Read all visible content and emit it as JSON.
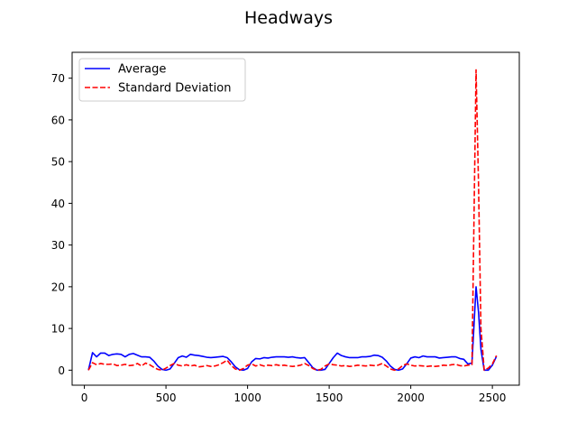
{
  "chart_data": {
    "type": "line",
    "title": "Headways",
    "xlabel": "",
    "ylabel": "",
    "xlim": [
      -75,
      2665
    ],
    "ylim": [
      -3.6,
      76.2
    ],
    "xticks": [
      0,
      500,
      1000,
      1500,
      2000,
      2500
    ],
    "yticks": [
      0,
      10,
      20,
      30,
      40,
      50,
      60,
      70
    ],
    "grid": false,
    "legend_position": "upper left",
    "series": [
      {
        "name": "Average",
        "color": "#0000ff",
        "style": "solid",
        "points": [
          [
            25,
            0
          ],
          [
            50,
            4.2
          ],
          [
            75,
            3.2
          ],
          [
            100,
            4.1
          ],
          [
            125,
            4.1
          ],
          [
            150,
            3.5
          ],
          [
            175,
            3.8
          ],
          [
            200,
            3.9
          ],
          [
            225,
            3.8
          ],
          [
            250,
            3.2
          ],
          [
            275,
            3.8
          ],
          [
            300,
            4
          ],
          [
            325,
            3.6
          ],
          [
            350,
            3.2
          ],
          [
            375,
            3.2
          ],
          [
            400,
            3.1
          ],
          [
            425,
            2.2
          ],
          [
            450,
            1
          ],
          [
            475,
            0.2
          ],
          [
            500,
            0
          ],
          [
            525,
            0.3
          ],
          [
            550,
            1.6
          ],
          [
            575,
            3
          ],
          [
            600,
            3.4
          ],
          [
            625,
            3.1
          ],
          [
            650,
            3.8
          ],
          [
            675,
            3.6
          ],
          [
            700,
            3.5
          ],
          [
            725,
            3.3
          ],
          [
            750,
            3.1
          ],
          [
            775,
            3
          ],
          [
            800,
            3.1
          ],
          [
            825,
            3.2
          ],
          [
            850,
            3.3
          ],
          [
            875,
            3
          ],
          [
            900,
            2
          ],
          [
            925,
            0.8
          ],
          [
            950,
            0.1
          ],
          [
            975,
            0
          ],
          [
            1000,
            0.4
          ],
          [
            1025,
            2
          ],
          [
            1050,
            2.8
          ],
          [
            1075,
            2.7
          ],
          [
            1100,
            3
          ],
          [
            1125,
            2.9
          ],
          [
            1150,
            3.1
          ],
          [
            1175,
            3.2
          ],
          [
            1200,
            3.2
          ],
          [
            1225,
            3.2
          ],
          [
            1250,
            3.1
          ],
          [
            1275,
            3.2
          ],
          [
            1300,
            3
          ],
          [
            1325,
            2.9
          ],
          [
            1350,
            3
          ],
          [
            1375,
            1.8
          ],
          [
            1400,
            0.6
          ],
          [
            1425,
            0
          ],
          [
            1450,
            0
          ],
          [
            1475,
            0.2
          ],
          [
            1500,
            1.6
          ],
          [
            1525,
            3
          ],
          [
            1550,
            4.1
          ],
          [
            1575,
            3.5
          ],
          [
            1600,
            3.2
          ],
          [
            1625,
            3
          ],
          [
            1650,
            3
          ],
          [
            1675,
            3
          ],
          [
            1700,
            3.2
          ],
          [
            1725,
            3.2
          ],
          [
            1750,
            3.3
          ],
          [
            1775,
            3.6
          ],
          [
            1800,
            3.5
          ],
          [
            1825,
            3.1
          ],
          [
            1850,
            2.2
          ],
          [
            1875,
            1
          ],
          [
            1900,
            0.2
          ],
          [
            1925,
            0
          ],
          [
            1950,
            0.3
          ],
          [
            1975,
            1.5
          ],
          [
            2000,
            2.9
          ],
          [
            2025,
            3.2
          ],
          [
            2050,
            3
          ],
          [
            2075,
            3.4
          ],
          [
            2100,
            3.2
          ],
          [
            2125,
            3.2
          ],
          [
            2150,
            3.2
          ],
          [
            2175,
            2.9
          ],
          [
            2200,
            3
          ],
          [
            2225,
            3.1
          ],
          [
            2250,
            3.2
          ],
          [
            2275,
            3.2
          ],
          [
            2300,
            2.8
          ],
          [
            2325,
            2.6
          ],
          [
            2350,
            1.5
          ],
          [
            2375,
            1.7
          ],
          [
            2400,
            20
          ],
          [
            2415,
            14
          ],
          [
            2430,
            5
          ],
          [
            2450,
            0
          ],
          [
            2475,
            0
          ],
          [
            2500,
            1.2
          ],
          [
            2525,
            3.3
          ]
        ]
      },
      {
        "name": "Standard Deviation",
        "color": "#ff0000",
        "style": "dashed",
        "points": [
          [
            25,
            0
          ],
          [
            50,
            1.8
          ],
          [
            75,
            1.3
          ],
          [
            100,
            1.6
          ],
          [
            125,
            1.4
          ],
          [
            150,
            1.4
          ],
          [
            175,
            1.5
          ],
          [
            200,
            1.1
          ],
          [
            225,
            1.2
          ],
          [
            250,
            1.4
          ],
          [
            275,
            1.1
          ],
          [
            300,
            1.2
          ],
          [
            325,
            1.6
          ],
          [
            350,
            1
          ],
          [
            375,
            1.7
          ],
          [
            400,
            1.3
          ],
          [
            425,
            0.7
          ],
          [
            450,
            0.2
          ],
          [
            475,
            0
          ],
          [
            500,
            0.5
          ],
          [
            525,
            1.1
          ],
          [
            550,
            1.6
          ],
          [
            575,
            1.2
          ],
          [
            600,
            1
          ],
          [
            625,
            1.3
          ],
          [
            650,
            1
          ],
          [
            675,
            1.2
          ],
          [
            700,
            0.8
          ],
          [
            725,
            0.9
          ],
          [
            750,
            1.1
          ],
          [
            775,
            0.9
          ],
          [
            800,
            1
          ],
          [
            825,
            1.3
          ],
          [
            850,
            1.8
          ],
          [
            875,
            2.4
          ],
          [
            900,
            1.1
          ],
          [
            925,
            0.3
          ],
          [
            950,
            0
          ],
          [
            975,
            0.4
          ],
          [
            1000,
            1.2
          ],
          [
            1025,
            1.5
          ],
          [
            1050,
            1
          ],
          [
            1075,
            1.3
          ],
          [
            1100,
            1
          ],
          [
            1125,
            1.2
          ],
          [
            1150,
            1.1
          ],
          [
            1175,
            1.3
          ],
          [
            1200,
            1.1
          ],
          [
            1225,
            1.2
          ],
          [
            1250,
            1
          ],
          [
            1275,
            0.9
          ],
          [
            1300,
            1
          ],
          [
            1325,
            1.2
          ],
          [
            1350,
            1.6
          ],
          [
            1375,
            1.1
          ],
          [
            1400,
            0.4
          ],
          [
            1425,
            0
          ],
          [
            1450,
            0.2
          ],
          [
            1475,
            1
          ],
          [
            1500,
            1.5
          ],
          [
            1525,
            1.3
          ],
          [
            1550,
            1.2
          ],
          [
            1575,
            1
          ],
          [
            1600,
            1.1
          ],
          [
            1625,
            0.9
          ],
          [
            1650,
            1
          ],
          [
            1675,
            1.2
          ],
          [
            1700,
            1.1
          ],
          [
            1725,
            1
          ],
          [
            1750,
            1.2
          ],
          [
            1775,
            1.1
          ],
          [
            1800,
            1.2
          ],
          [
            1825,
            1.6
          ],
          [
            1850,
            1
          ],
          [
            1875,
            0.3
          ],
          [
            1900,
            0
          ],
          [
            1925,
            0.3
          ],
          [
            1950,
            1.1
          ],
          [
            1975,
            1.5
          ],
          [
            2000,
            1.2
          ],
          [
            2025,
            1
          ],
          [
            2050,
            1.1
          ],
          [
            2075,
            1
          ],
          [
            2100,
            0.9
          ],
          [
            2125,
            1
          ],
          [
            2150,
            0.9
          ],
          [
            2175,
            1
          ],
          [
            2200,
            1.2
          ],
          [
            2225,
            1.1
          ],
          [
            2250,
            1.3
          ],
          [
            2275,
            1.4
          ],
          [
            2300,
            1.1
          ],
          [
            2325,
            1
          ],
          [
            2350,
            1.2
          ],
          [
            2375,
            1.3
          ],
          [
            2400,
            72
          ],
          [
            2415,
            45
          ],
          [
            2430,
            10
          ],
          [
            2450,
            0
          ],
          [
            2475,
            0.5
          ],
          [
            2500,
            1.5
          ],
          [
            2525,
            3.5
          ]
        ]
      }
    ]
  }
}
